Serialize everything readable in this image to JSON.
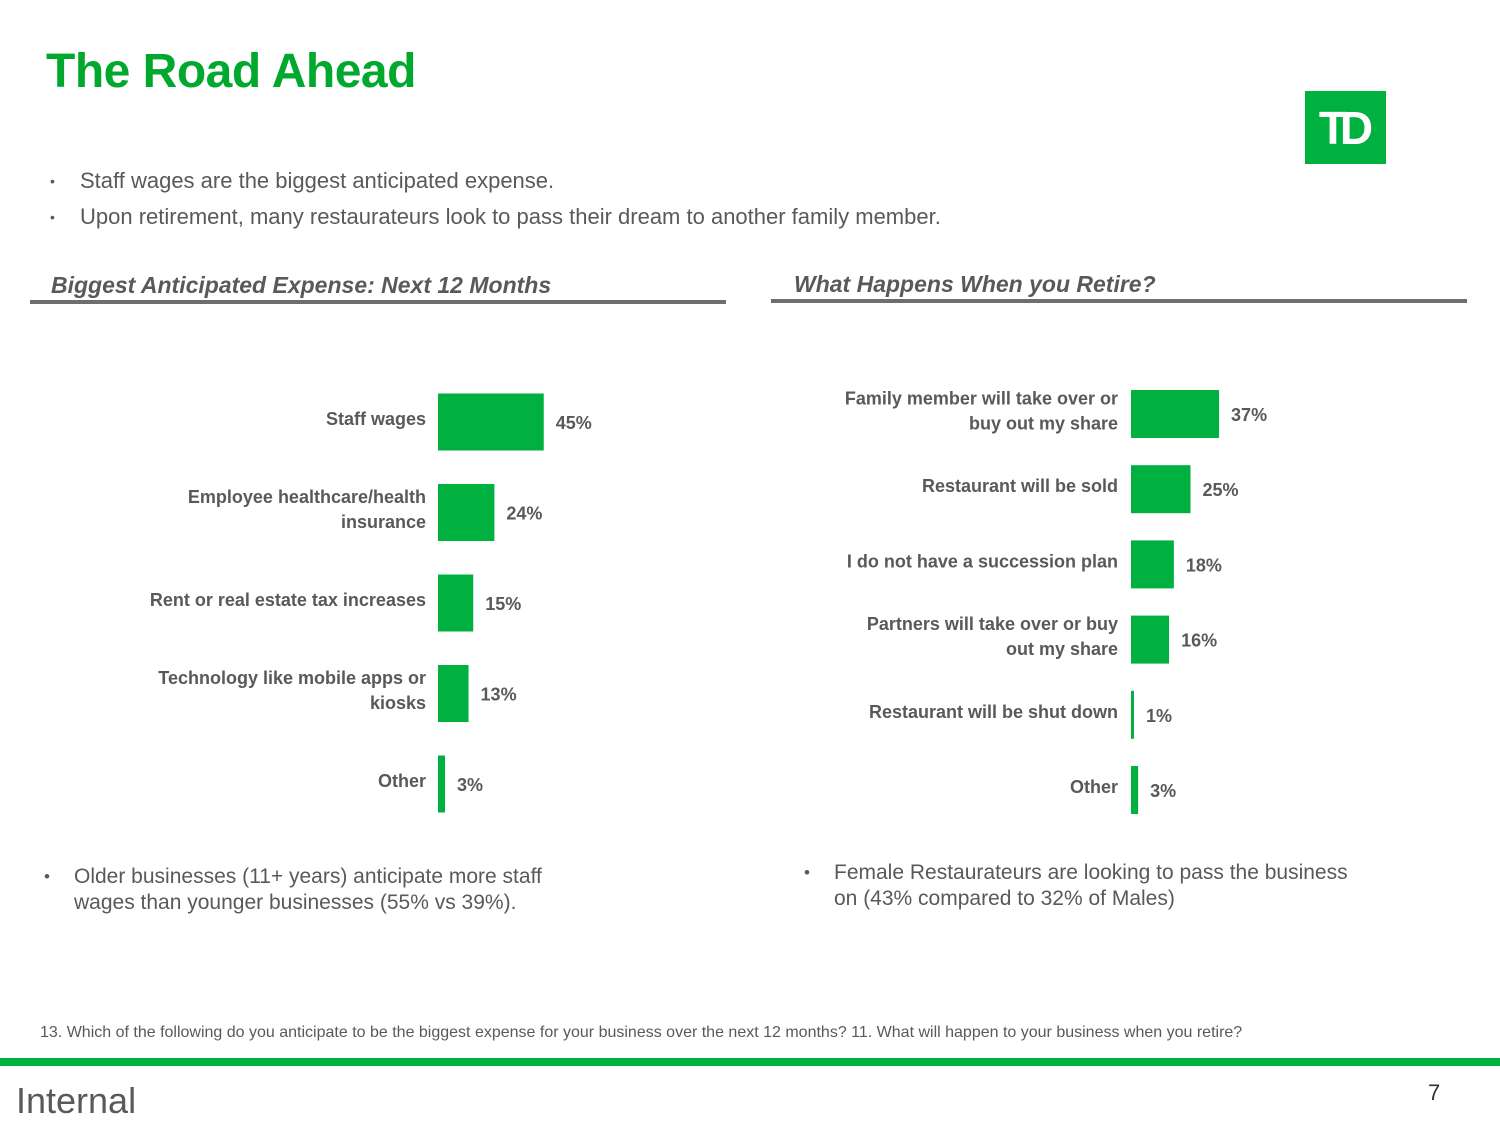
{
  "title": "The Road Ahead",
  "logo_text": "TD",
  "bullets": [
    "Staff wages are the biggest anticipated expense.",
    "Upon retirement, many restaurateurs look to pass their dream to another family member."
  ],
  "colors": {
    "brand_green": "#00b140",
    "title_green": "#00a82d",
    "text_gray": "#595959"
  },
  "chart_data": [
    {
      "type": "bar",
      "orientation": "horizontal",
      "title": "Biggest Anticipated Expense: Next 12 Months",
      "categories": [
        [
          "Staff wages"
        ],
        [
          "Employee healthcare/health",
          "insurance"
        ],
        [
          "Rent or real estate tax increases"
        ],
        [
          "Technology like mobile apps or",
          "kiosks"
        ],
        [
          "Other"
        ]
      ],
      "values": [
        45,
        24,
        15,
        13,
        3
      ],
      "value_labels": [
        "45%",
        "24%",
        "15%",
        "13%",
        "3%"
      ],
      "unit": "%"
    },
    {
      "type": "bar",
      "orientation": "horizontal",
      "title": "What Happens When you Retire?",
      "categories": [
        [
          "Family member will take over or",
          "buy out my share"
        ],
        [
          "Restaurant will be sold"
        ],
        [
          "I do not have a succession plan"
        ],
        [
          "Partners will take over or buy",
          "out my share"
        ],
        [
          "Restaurant will be shut down"
        ],
        [
          "Other"
        ]
      ],
      "values": [
        37,
        25,
        18,
        16,
        1,
        3
      ],
      "value_labels": [
        "37%",
        "25%",
        "18%",
        "16%",
        "1%",
        "3%"
      ],
      "unit": "%"
    }
  ],
  "notes": {
    "left": [
      "Older businesses (11+ years) anticipate more staff",
      "wages than younger businesses (55% vs 39%)."
    ],
    "right": [
      "Female Restaurateurs are looking to pass the business",
      "on (43% compared to 32% of Males)"
    ]
  },
  "footnote": "13.  Which of the following do you anticipate to be the biggest expense for your business over the next 12 months? 11. What will happen to your business when you retire?",
  "footer": {
    "classification": "Internal",
    "page_number": "7"
  }
}
